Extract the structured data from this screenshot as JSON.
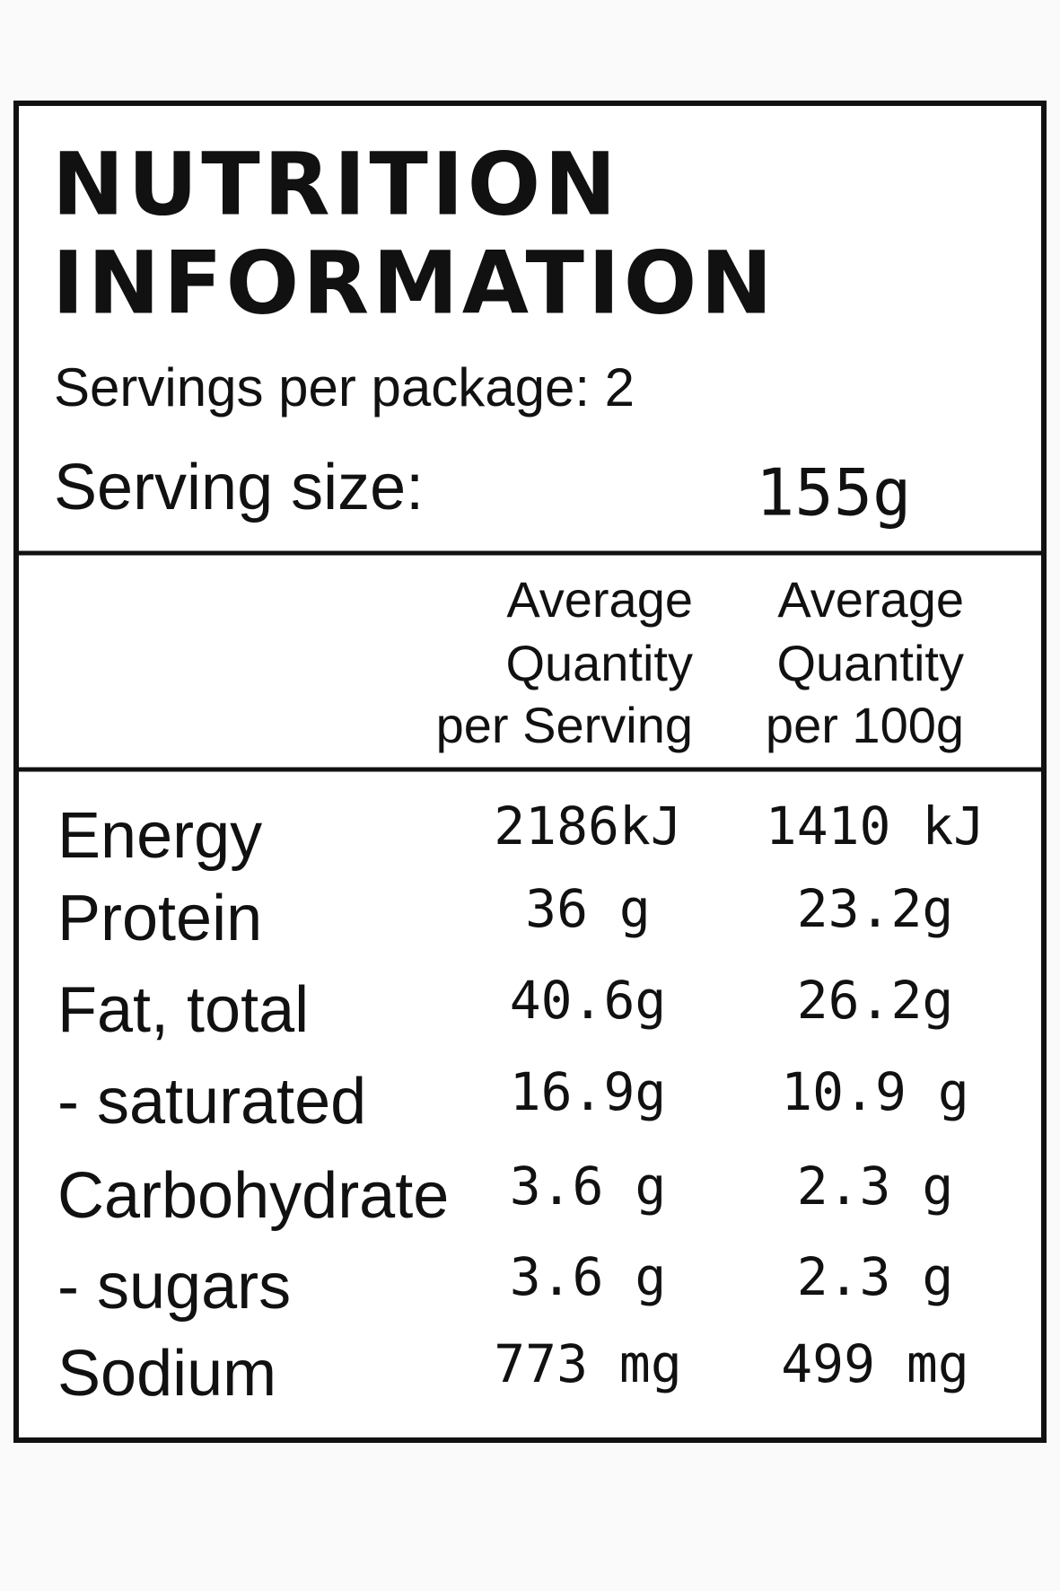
{
  "header": {
    "title": [
      "NUTRITION",
      "INFORMATION"
    ],
    "servings": "Servings per package: 2",
    "serving_size_label": "Serving size:",
    "serving_size_value": "155g"
  },
  "table": {
    "columns": [
      [
        "Average",
        "Quantity",
        "per Serving"
      ],
      [
        "Average",
        "Quantity",
        "per 100g"
      ]
    ],
    "rows": [
      [
        "Energy",
        "2186kJ",
        "1410 kJ"
      ],
      [
        "Protein",
        "36 g",
        "23.2g"
      ],
      [
        "Fat, total",
        "40.6g",
        "26.2g"
      ],
      [
        "- saturated",
        "16.9g",
        "10.9 g"
      ],
      [
        "Carbohydrate",
        "3.6 g",
        "2.3 g"
      ],
      [
        "- sugars",
        "3.6 g",
        "2.3 g"
      ],
      [
        "Sodium",
        "773 mg",
        "499 mg"
      ]
    ]
  }
}
